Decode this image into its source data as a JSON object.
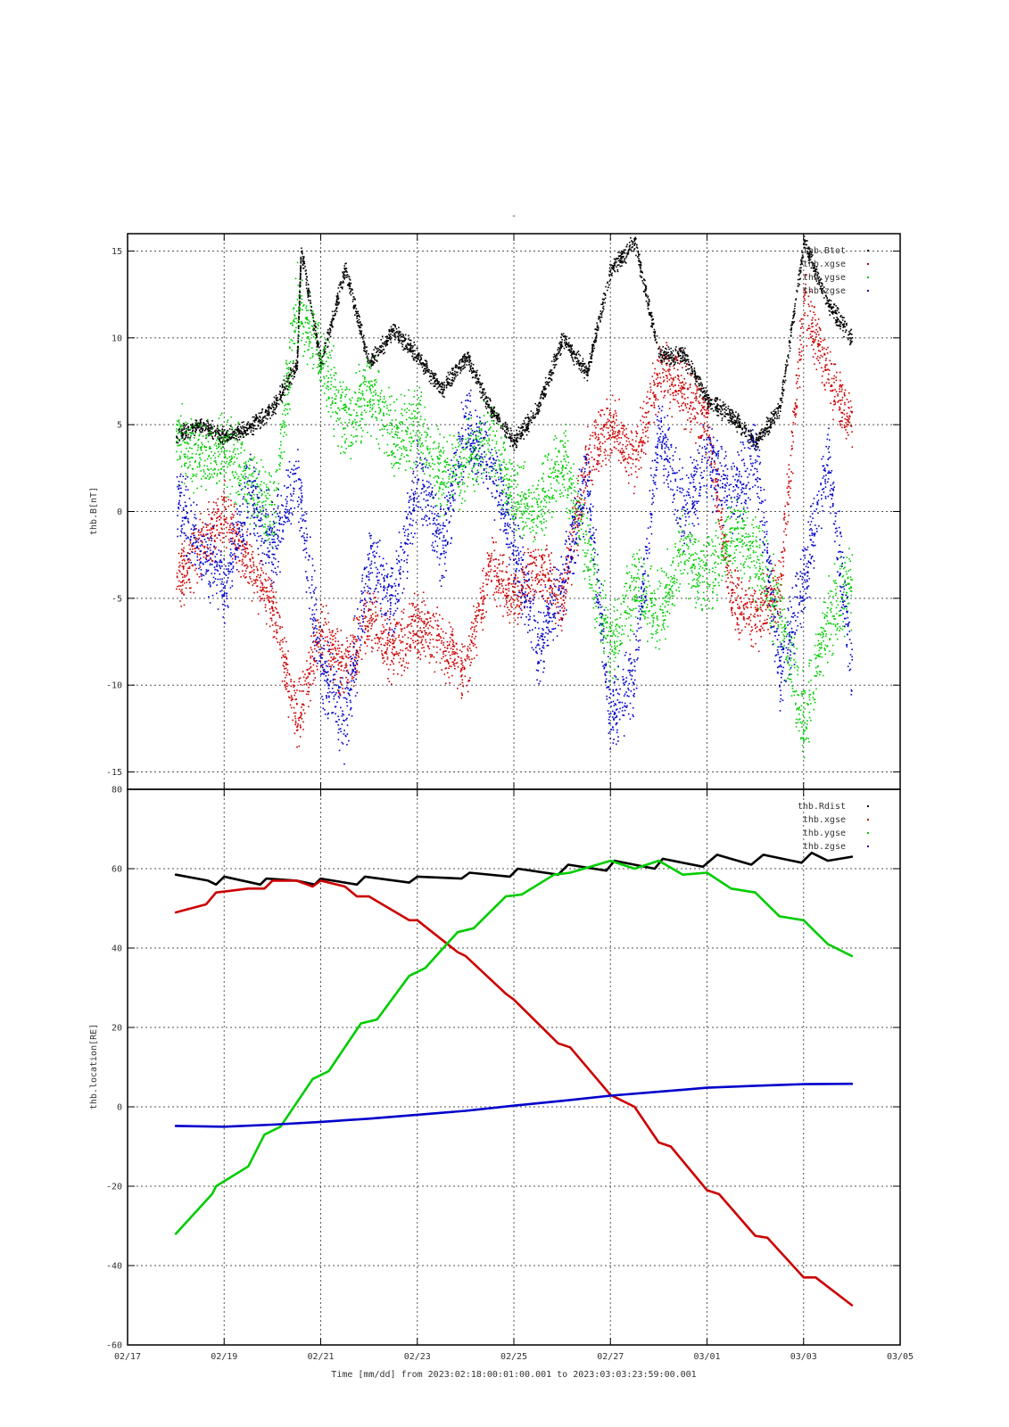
{
  "page_title": "-",
  "xlabel": "Time [mm/dd]  from 2023:02:18:00:01:00.001  to  2023:03:03:23:59:00.001",
  "x_ticks": [
    "02/17",
    "02/19",
    "02/21",
    "02/23",
    "02/25",
    "02/27",
    "03/01",
    "03/03",
    "03/05"
  ],
  "colors": {
    "Rdist": "#000000",
    "xgse": "#cc0000",
    "ygse": "#00cc00",
    "zgse": "#0000cc"
  },
  "chart_data": [
    {
      "type": "scatter",
      "title": "",
      "ylabel": "thb.B[nT]",
      "xlim": [
        "2023-02-17",
        "2023-03-05"
      ],
      "ylim": [
        -16,
        16
      ],
      "grid": true,
      "legend_position": "top-right",
      "y_ticks": [
        "15",
        "10",
        "5",
        "0",
        "-5",
        "-10",
        "-15"
      ],
      "series": [
        {
          "name": "thb.Btot",
          "color": "black",
          "points": [
            [
              "2023-02-18",
              4.5
            ],
            [
              "2023-02-18 12:00",
              5.0
            ],
            [
              "2023-02-19",
              4.3
            ],
            [
              "2023-02-19 12:00",
              4.8
            ],
            [
              "2023-02-20",
              6.0
            ],
            [
              "2023-02-20 12:00",
              8.5
            ],
            [
              "2023-02-20 14:00",
              15.0
            ],
            [
              "2023-02-21",
              8.5
            ],
            [
              "2023-02-21 12:00",
              14.0
            ],
            [
              "2023-02-22",
              8.5
            ],
            [
              "2023-02-22 12:00",
              10.5
            ],
            [
              "2023-02-23",
              9.0
            ],
            [
              "2023-02-23 12:00",
              7.0
            ],
            [
              "2023-02-24",
              9.0
            ],
            [
              "2023-02-24 12:00",
              6.0
            ],
            [
              "2023-02-25",
              4.0
            ],
            [
              "2023-02-25 12:00",
              6.0
            ],
            [
              "2023-02-26",
              10.0
            ],
            [
              "2023-02-26 12:00",
              8.0
            ],
            [
              "2023-02-27",
              14.0
            ],
            [
              "2023-02-27 12:00",
              15.5
            ],
            [
              "2023-02-28",
              9.0
            ],
            [
              "2023-02-28 12:00",
              9.0
            ],
            [
              "2023-03-01",
              6.5
            ],
            [
              "2023-03-01 12:00",
              5.5
            ],
            [
              "2023-03-02",
              4.0
            ],
            [
              "2023-03-02 12:00",
              6.0
            ],
            [
              "2023-03-03",
              15.5
            ],
            [
              "2023-03-03 12:00",
              12.0
            ],
            [
              "2023-03-04",
              10.0
            ]
          ]
        },
        {
          "name": "thb.xgse",
          "color": "red",
          "points": [
            [
              "2023-02-18",
              -4.0
            ],
            [
              "2023-02-18 12:00",
              -2.0
            ],
            [
              "2023-02-19",
              0.0
            ],
            [
              "2023-02-19 12:00",
              -3.0
            ],
            [
              "2023-02-20",
              -5.5
            ],
            [
              "2023-02-20 12:00",
              -12.0
            ],
            [
              "2023-02-21",
              -7.0
            ],
            [
              "2023-02-21 12:00",
              -9.0
            ],
            [
              "2023-02-22",
              -6.0
            ],
            [
              "2023-02-22 12:00",
              -8.0
            ],
            [
              "2023-02-23",
              -6.5
            ],
            [
              "2023-02-23 12:00",
              -7.5
            ],
            [
              "2023-02-24",
              -9.0
            ],
            [
              "2023-02-24 12:00",
              -3.0
            ],
            [
              "2023-02-25",
              -5.0
            ],
            [
              "2023-02-25 12:00",
              -3.0
            ],
            [
              "2023-02-26",
              -5.0
            ],
            [
              "2023-02-26 12:00",
              3.0
            ],
            [
              "2023-02-27",
              5.0
            ],
            [
              "2023-02-27 12:00",
              3.0
            ],
            [
              "2023-02-28",
              8.0
            ],
            [
              "2023-02-28 12:00",
              7.0
            ],
            [
              "2023-03-01",
              5.0
            ],
            [
              "2023-03-01 12:00",
              -5.0
            ],
            [
              "2023-03-02",
              -6.0
            ],
            [
              "2023-03-02 12:00",
              -4.5
            ],
            [
              "2023-03-03",
              12.0
            ],
            [
              "2023-03-03 12:00",
              8.0
            ],
            [
              "2023-03-04",
              5.0
            ]
          ]
        },
        {
          "name": "thb.ygse",
          "color": "green",
          "points": [
            [
              "2023-02-18",
              4.0
            ],
            [
              "2023-02-18 12:00",
              3.0
            ],
            [
              "2023-02-19",
              3.5
            ],
            [
              "2023-02-19 12:00",
              2.0
            ],
            [
              "2023-02-20",
              0.0
            ],
            [
              "2023-02-20 12:00",
              12.0
            ],
            [
              "2023-02-21",
              9.0
            ],
            [
              "2023-02-21 12:00",
              5.0
            ],
            [
              "2023-02-22",
              7.0
            ],
            [
              "2023-02-22 12:00",
              4.0
            ],
            [
              "2023-02-23",
              5.0
            ],
            [
              "2023-02-23 12:00",
              2.0
            ],
            [
              "2023-02-24",
              3.0
            ],
            [
              "2023-02-24 12:00",
              4.0
            ],
            [
              "2023-02-25",
              1.0
            ],
            [
              "2023-02-25 12:00",
              0.0
            ],
            [
              "2023-02-26",
              3.0
            ],
            [
              "2023-02-26 12:00",
              -2.0
            ],
            [
              "2023-02-27",
              -8.0
            ],
            [
              "2023-02-27 12:00",
              -4.0
            ],
            [
              "2023-02-28",
              -6.0
            ],
            [
              "2023-02-28 12:00",
              -2.0
            ],
            [
              "2023-03-01",
              -4.0
            ],
            [
              "2023-03-01 12:00",
              -1.0
            ],
            [
              "2023-03-02",
              -2.5
            ],
            [
              "2023-03-02 12:00",
              -6.0
            ],
            [
              "2023-03-03",
              -12.0
            ],
            [
              "2023-03-03 12:00",
              -6.0
            ],
            [
              "2023-03-04",
              -4.0
            ]
          ]
        },
        {
          "name": "thb.zgse",
          "color": "blue",
          "points": [
            [
              "2023-02-18",
              1.0
            ],
            [
              "2023-02-18 12:00",
              -2.0
            ],
            [
              "2023-02-19",
              -4.0
            ],
            [
              "2023-02-19 12:00",
              1.0
            ],
            [
              "2023-02-20",
              -2.0
            ],
            [
              "2023-02-20 12:00",
              2.0
            ],
            [
              "2023-02-21",
              -9.0
            ],
            [
              "2023-02-21 12:00",
              -12.0
            ],
            [
              "2023-02-22",
              -3.0
            ],
            [
              "2023-02-22 12:00",
              -5.0
            ],
            [
              "2023-02-23",
              2.0
            ],
            [
              "2023-02-23 12:00",
              -2.0
            ],
            [
              "2023-02-24",
              5.0
            ],
            [
              "2023-02-24 12:00",
              3.0
            ],
            [
              "2023-02-25",
              -2.0
            ],
            [
              "2023-02-25 12:00",
              -8.0
            ],
            [
              "2023-02-26",
              -4.0
            ],
            [
              "2023-02-26 12:00",
              2.0
            ],
            [
              "2023-02-27",
              -12.0
            ],
            [
              "2023-02-27 12:00",
              -9.0
            ],
            [
              "2023-02-28",
              5.0
            ],
            [
              "2023-02-28 12:00",
              0.0
            ],
            [
              "2023-03-01",
              3.0
            ],
            [
              "2023-03-01 12:00",
              1.0
            ],
            [
              "2023-03-02",
              3.0
            ],
            [
              "2023-03-02 12:00",
              -9.0
            ],
            [
              "2023-03-03",
              -4.0
            ],
            [
              "2023-03-03 12:00",
              3.0
            ],
            [
              "2023-03-04",
              -9.0
            ]
          ]
        }
      ]
    },
    {
      "type": "line",
      "title": "",
      "ylabel": "thb.location[RE]",
      "xlim": [
        "2023-02-17",
        "2023-03-05"
      ],
      "ylim": [
        -60,
        80
      ],
      "grid": true,
      "legend_position": "top-right",
      "y_ticks": [
        "80",
        "60",
        "40",
        "20",
        "0",
        "-20",
        "-40",
        "-60"
      ],
      "series": [
        {
          "name": "thb.Rdist",
          "color": "black",
          "points": [
            [
              "2023-02-18",
              58.5
            ],
            [
              "2023-02-18 16:00",
              57.0
            ],
            [
              "2023-02-18 20:00",
              56.0
            ],
            [
              "2023-02-19",
              58.0
            ],
            [
              "2023-02-19 18:00",
              56.0
            ],
            [
              "2023-02-19 21:00",
              57.5
            ],
            [
              "2023-02-20 12:00",
              57.0
            ],
            [
              "2023-02-20 21:00",
              56.0
            ],
            [
              "2023-02-21",
              57.5
            ],
            [
              "2023-02-21 18:00",
              56.0
            ],
            [
              "2023-02-21 22:00",
              58.0
            ],
            [
              "2023-02-22 20:00",
              56.5
            ],
            [
              "2023-02-23",
              58.0
            ],
            [
              "2023-02-23 22:00",
              57.5
            ],
            [
              "2023-02-24 02:00",
              59.0
            ],
            [
              "2023-02-24 22:00",
              58.0
            ],
            [
              "2023-02-25 02:00",
              60.0
            ],
            [
              "2023-02-25 22:00",
              58.5
            ],
            [
              "2023-02-26 03:00",
              61.0
            ],
            [
              "2023-02-26 22:00",
              59.5
            ],
            [
              "2023-02-27 02:00",
              62.0
            ],
            [
              "2023-02-27 22:00",
              60.0
            ],
            [
              "2023-02-28 02:00",
              62.5
            ],
            [
              "2023-02-28 22:00",
              60.5
            ],
            [
              "2023-03-01 05:00",
              63.5
            ],
            [
              "2023-03-01 22:00",
              61.0
            ],
            [
              "2023-03-02 04:00",
              63.5
            ],
            [
              "2023-03-02 23:00",
              61.5
            ],
            [
              "2023-03-03 04:00",
              64.0
            ],
            [
              "2023-03-03 12:00",
              62.0
            ],
            [
              "2023-03-04",
              63.0
            ]
          ]
        },
        {
          "name": "thb.xgse",
          "color": "red",
          "points": [
            [
              "2023-02-18",
              49.0
            ],
            [
              "2023-02-18 15:00",
              51.0
            ],
            [
              "2023-02-18 20:00",
              54.0
            ],
            [
              "2023-02-19 12:00",
              55.0
            ],
            [
              "2023-02-19 20:00",
              55.0
            ],
            [
              "2023-02-20",
              57.0
            ],
            [
              "2023-02-20 12:00",
              57.0
            ],
            [
              "2023-02-20 20:00",
              55.5
            ],
            [
              "2023-02-21",
              57.0
            ],
            [
              "2023-02-21 12:00",
              55.5
            ],
            [
              "2023-02-21 18:00",
              53.0
            ],
            [
              "2023-02-22",
              53.0
            ],
            [
              "2023-02-22 20:00",
              47.0
            ],
            [
              "2023-02-23",
              47.0
            ],
            [
              "2023-02-23 20:00",
              39.0
            ],
            [
              "2023-02-24",
              38.0
            ],
            [
              "2023-02-24 20:00",
              28.5
            ],
            [
              "2023-02-25",
              27.0
            ],
            [
              "2023-02-25 22:00",
              16.0
            ],
            [
              "2023-02-26 04:00",
              15.0
            ],
            [
              "2023-02-27",
              3.0
            ],
            [
              "2023-02-27 12:00",
              0.0
            ],
            [
              "2023-02-28",
              -9.0
            ],
            [
              "2023-02-28 06:00",
              -10.0
            ],
            [
              "2023-03-01",
              -21.0
            ],
            [
              "2023-03-01 06:00",
              -22.0
            ],
            [
              "2023-03-02",
              -32.5
            ],
            [
              "2023-03-02 06:00",
              -33.0
            ],
            [
              "2023-03-03",
              -43.0
            ],
            [
              "2023-03-03 06:00",
              -43.0
            ],
            [
              "2023-03-04",
              -50.0
            ]
          ]
        },
        {
          "name": "thb.ygse",
          "color": "green",
          "points": [
            [
              "2023-02-18",
              -32.0
            ],
            [
              "2023-02-18 18:00",
              -22.0
            ],
            [
              "2023-02-18 20:00",
              -20.0
            ],
            [
              "2023-02-19 12:00",
              -15.0
            ],
            [
              "2023-02-19 20:00",
              -7.0
            ],
            [
              "2023-02-20 04:00",
              -5.0
            ],
            [
              "2023-02-20 20:00",
              7.0
            ],
            [
              "2023-02-21 04:00",
              9.0
            ],
            [
              "2023-02-21 20:00",
              21.0
            ],
            [
              "2023-02-22 04:00",
              22.0
            ],
            [
              "2023-02-22 20:00",
              33.0
            ],
            [
              "2023-02-23 04:00",
              35.0
            ],
            [
              "2023-02-23 20:00",
              44.0
            ],
            [
              "2023-02-24 04:00",
              45.0
            ],
            [
              "2023-02-24 20:00",
              53.0
            ],
            [
              "2023-02-25 04:00",
              53.5
            ],
            [
              "2023-02-25 20:00",
              58.5
            ],
            [
              "2023-02-26 04:00",
              59.0
            ],
            [
              "2023-02-27",
              62.0
            ],
            [
              "2023-02-27 12:00",
              60.0
            ],
            [
              "2023-02-28",
              62.0
            ],
            [
              "2023-02-28 12:00",
              58.5
            ],
            [
              "2023-03-01",
              59.0
            ],
            [
              "2023-03-01 12:00",
              55.0
            ],
            [
              "2023-03-02",
              54.0
            ],
            [
              "2023-03-02 12:00",
              48.0
            ],
            [
              "2023-03-03",
              47.0
            ],
            [
              "2023-03-03 12:00",
              41.0
            ],
            [
              "2023-03-04",
              38.0
            ]
          ]
        },
        {
          "name": "thb.zgse",
          "color": "blue",
          "points": [
            [
              "2023-02-18",
              -4.8
            ],
            [
              "2023-02-19",
              -5.0
            ],
            [
              "2023-02-20",
              -4.5
            ],
            [
              "2023-02-21",
              -3.8
            ],
            [
              "2023-02-22",
              -3.0
            ],
            [
              "2023-02-23",
              -2.0
            ],
            [
              "2023-02-24",
              -1.0
            ],
            [
              "2023-02-25",
              0.3
            ],
            [
              "2023-02-26",
              1.5
            ],
            [
              "2023-02-27",
              2.8
            ],
            [
              "2023-02-28",
              3.8
            ],
            [
              "2023-03-01",
              4.8
            ],
            [
              "2023-03-02",
              5.3
            ],
            [
              "2023-03-03",
              5.7
            ],
            [
              "2023-03-04",
              5.8
            ]
          ]
        }
      ]
    }
  ]
}
